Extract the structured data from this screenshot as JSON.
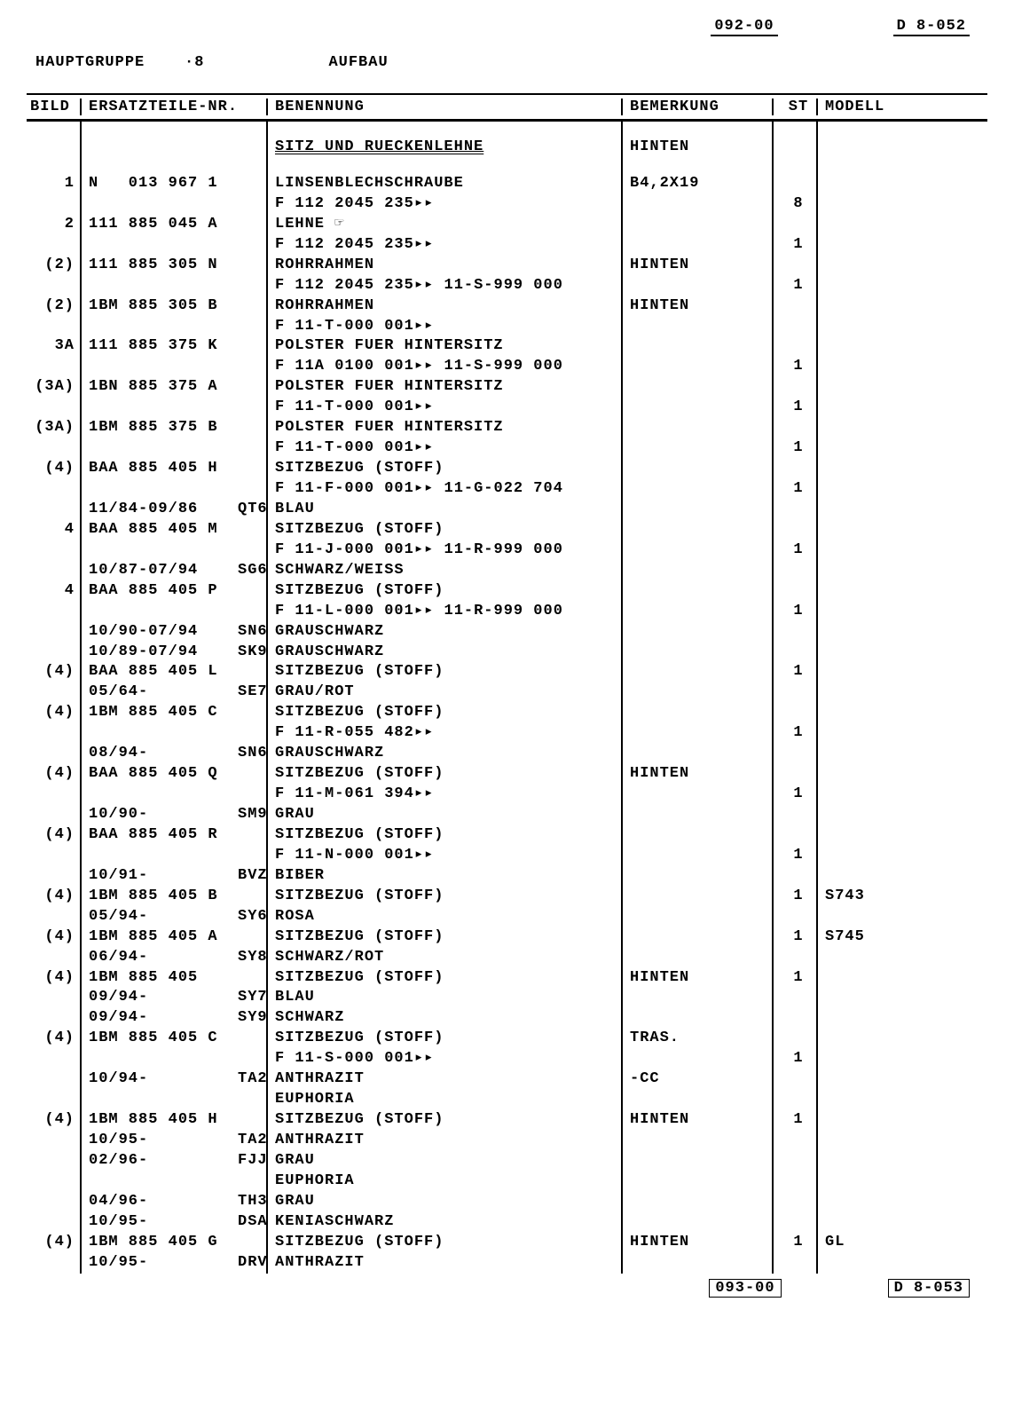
{
  "header": {
    "top_code_left": "092-00",
    "top_code_right": "D  8-052",
    "hauptgruppe_label": "HAUPTGRUPPE",
    "hauptgruppe_num": "·8",
    "aufbau": "AUFBAU"
  },
  "columns": {
    "bild": "BILD",
    "part": "ERSATZTEILE-NR.",
    "desc": "BENENNUNG",
    "remark": "BEMERKUNG",
    "st": "ST",
    "model": "MODELL"
  },
  "section": {
    "title": "SITZ UND RUECKENLEHNE",
    "remark": "HINTEN"
  },
  "rows": [
    {
      "bild": "1",
      "part": "N   013 967 1",
      "desc": "LINSENBLECHSCHRAUBE",
      "remark": "B4,2X19",
      "st": "",
      "model": ""
    },
    {
      "bild": "",
      "part": "",
      "desc": "F 112 2045 235▸▸",
      "remark": "",
      "st": "8",
      "model": ""
    },
    {
      "bild": "2",
      "part": "111 885 045 A",
      "desc": "LEHNE ☞",
      "remark": "",
      "st": "",
      "model": ""
    },
    {
      "bild": "",
      "part": "",
      "desc": "F 112 2045 235▸▸",
      "remark": "",
      "st": "1",
      "model": ""
    },
    {
      "bild": "(2)",
      "part": "111 885 305 N",
      "desc": "ROHRRAHMEN",
      "remark": "HINTEN",
      "st": "",
      "model": ""
    },
    {
      "bild": "",
      "part": "",
      "desc": "F 112 2045 235▸▸ 11-S-999 000",
      "remark": "",
      "st": "1",
      "model": ""
    },
    {
      "bild": "(2)",
      "part": "1BM 885 305 B",
      "desc": "ROHRRAHMEN",
      "remark": "HINTEN",
      "st": "",
      "model": ""
    },
    {
      "bild": "",
      "part": "",
      "desc": "F 11-T-000 001▸▸",
      "remark": "",
      "st": "",
      "model": ""
    },
    {
      "bild": "3A",
      "part": "111 885 375 K",
      "desc": "POLSTER FUER HINTERSITZ",
      "remark": "",
      "st": "",
      "model": ""
    },
    {
      "bild": "",
      "part": "",
      "desc": "F 11A 0100 001▸▸ 11-S-999 000",
      "remark": "",
      "st": "1",
      "model": ""
    },
    {
      "bild": "(3A)",
      "part": "1BN 885 375 A",
      "desc": "POLSTER FUER HINTERSITZ",
      "remark": "",
      "st": "",
      "model": ""
    },
    {
      "bild": "",
      "part": "",
      "desc": "F 11-T-000 001▸▸",
      "remark": "",
      "st": "1",
      "model": ""
    },
    {
      "bild": "(3A)",
      "part": "1BM 885 375 B",
      "desc": "POLSTER FUER HINTERSITZ",
      "remark": "",
      "st": "",
      "model": ""
    },
    {
      "bild": "",
      "part": "",
      "desc": "F 11-T-000 001▸▸",
      "remark": "",
      "st": "1",
      "model": ""
    },
    {
      "bild": "(4)",
      "part": "BAA 885 405 H",
      "desc": "SITZBEZUG (STOFF)",
      "remark": "",
      "st": "",
      "model": ""
    },
    {
      "bild": "",
      "part": "",
      "desc": "F 11-F-000 001▸▸ 11-G-022 704",
      "remark": "",
      "st": "1",
      "model": ""
    },
    {
      "bild": "",
      "part": "11/84-09/86    QT6",
      "desc": "BLAU",
      "remark": "",
      "st": "",
      "model": ""
    },
    {
      "bild": "4",
      "part": "BAA 885 405 M",
      "desc": "SITZBEZUG (STOFF)",
      "remark": "",
      "st": "",
      "model": ""
    },
    {
      "bild": "",
      "part": "",
      "desc": "F 11-J-000 001▸▸ 11-R-999 000",
      "remark": "",
      "st": "1",
      "model": ""
    },
    {
      "bild": "",
      "part": "10/87-07/94    SG6",
      "desc": "SCHWARZ/WEISS",
      "remark": "",
      "st": "",
      "model": ""
    },
    {
      "bild": "4",
      "part": "BAA 885 405 P",
      "desc": "SITZBEZUG (STOFF)",
      "remark": "",
      "st": "",
      "model": ""
    },
    {
      "bild": "",
      "part": "",
      "desc": "F 11-L-000 001▸▸ 11-R-999 000",
      "remark": "",
      "st": "1",
      "model": ""
    },
    {
      "bild": "",
      "part": "10/90-07/94    SN6",
      "desc": "GRAUSCHWARZ",
      "remark": "",
      "st": "",
      "model": ""
    },
    {
      "bild": "",
      "part": "10/89-07/94    SK9",
      "desc": "GRAUSCHWARZ",
      "remark": "",
      "st": "",
      "model": ""
    },
    {
      "bild": "(4)",
      "part": "BAA 885 405 L",
      "desc": "SITZBEZUG (STOFF)",
      "remark": "",
      "st": "1",
      "model": ""
    },
    {
      "bild": "",
      "part": "05/64-         SE7",
      "desc": "GRAU/ROT",
      "remark": "",
      "st": "",
      "model": ""
    },
    {
      "bild": "(4)",
      "part": "1BM 885 405 C",
      "desc": "SITZBEZUG (STOFF)",
      "remark": "",
      "st": "",
      "model": ""
    },
    {
      "bild": "",
      "part": "",
      "desc": "F 11-R-055 482▸▸",
      "remark": "",
      "st": "1",
      "model": ""
    },
    {
      "bild": "",
      "part": "08/94-         SN6",
      "desc": "GRAUSCHWARZ",
      "remark": "",
      "st": "",
      "model": ""
    },
    {
      "bild": "(4)",
      "part": "BAA 885 405 Q",
      "desc": "SITZBEZUG (STOFF)",
      "remark": "HINTEN",
      "st": "",
      "model": ""
    },
    {
      "bild": "",
      "part": "",
      "desc": "F 11-M-061 394▸▸",
      "remark": "",
      "st": "1",
      "model": ""
    },
    {
      "bild": "",
      "part": "10/90-         SM9",
      "desc": "GRAU",
      "remark": "",
      "st": "",
      "model": ""
    },
    {
      "bild": "(4)",
      "part": "BAA 885 405 R",
      "desc": "SITZBEZUG (STOFF)",
      "remark": "",
      "st": "",
      "model": ""
    },
    {
      "bild": "",
      "part": "",
      "desc": "F 11-N-000 001▸▸",
      "remark": "",
      "st": "1",
      "model": ""
    },
    {
      "bild": "",
      "part": "10/91-         BVZ",
      "desc": "BIBER",
      "remark": "",
      "st": "",
      "model": ""
    },
    {
      "bild": "(4)",
      "part": "1BM 885 405 B",
      "desc": "SITZBEZUG (STOFF)",
      "remark": "",
      "st": "1",
      "model": "S743"
    },
    {
      "bild": "",
      "part": "05/94-         SY6",
      "desc": "ROSA",
      "remark": "",
      "st": "",
      "model": ""
    },
    {
      "bild": "(4)",
      "part": "1BM 885 405 A",
      "desc": "SITZBEZUG (STOFF)",
      "remark": "",
      "st": "1",
      "model": "S745"
    },
    {
      "bild": "",
      "part": "06/94-         SY8",
      "desc": "SCHWARZ/ROT",
      "remark": "",
      "st": "",
      "model": ""
    },
    {
      "bild": "(4)",
      "part": "1BM 885 405  ",
      "desc": "SITZBEZUG (STOFF)",
      "remark": "HINTEN",
      "st": "1",
      "model": ""
    },
    {
      "bild": "",
      "part": "09/94-         SY7",
      "desc": "BLAU",
      "remark": "",
      "st": "",
      "model": ""
    },
    {
      "bild": "",
      "part": "09/94-         SY9",
      "desc": "SCHWARZ",
      "remark": "",
      "st": "",
      "model": ""
    },
    {
      "bild": "(4)",
      "part": "1BM 885 405 C",
      "desc": "SITZBEZUG (STOFF)",
      "remark": "TRAS.",
      "st": "",
      "model": ""
    },
    {
      "bild": "",
      "part": "",
      "desc": "F 11-S-000 001▸▸",
      "remark": "",
      "st": "1",
      "model": ""
    },
    {
      "bild": "",
      "part": "10/94-         TA2",
      "desc": "ANTHRAZIT",
      "remark": "-CC",
      "st": "",
      "model": ""
    },
    {
      "bild": "",
      "part": "",
      "desc": "EUPHORIA",
      "remark": "",
      "st": "",
      "model": ""
    },
    {
      "bild": "(4)",
      "part": "1BM 885 405 H",
      "desc": "SITZBEZUG (STOFF)",
      "remark": "HINTEN",
      "st": "1",
      "model": ""
    },
    {
      "bild": "",
      "part": "10/95-         TA2",
      "desc": "ANTHRAZIT",
      "remark": "",
      "st": "",
      "model": ""
    },
    {
      "bild": "",
      "part": "02/96-         FJJ",
      "desc": "GRAU",
      "remark": "",
      "st": "",
      "model": ""
    },
    {
      "bild": "",
      "part": "",
      "desc": "EUPHORIA",
      "remark": "",
      "st": "",
      "model": ""
    },
    {
      "bild": "",
      "part": "04/96-         TH3",
      "desc": "GRAU",
      "remark": "",
      "st": "",
      "model": ""
    },
    {
      "bild": "",
      "part": "10/95-         DSA",
      "desc": "KENIASCHWARZ",
      "remark": "",
      "st": "",
      "model": ""
    },
    {
      "bild": "(4)",
      "part": "1BM 885 405 G",
      "desc": "SITZBEZUG (STOFF)",
      "remark": "HINTEN",
      "st": "1",
      "model": "GL"
    },
    {
      "bild": "",
      "part": "10/95-         DRV",
      "desc": "ANTHRAZIT",
      "remark": "",
      "st": "",
      "model": ""
    }
  ],
  "footer": {
    "code_left": "093-00",
    "code_right": "D  8-053"
  }
}
